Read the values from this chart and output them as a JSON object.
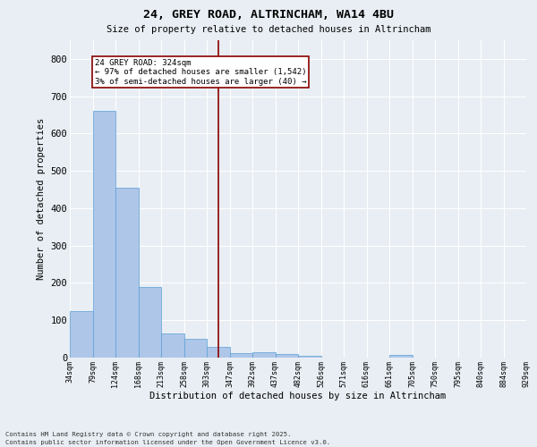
{
  "title1": "24, GREY ROAD, ALTRINCHAM, WA14 4BU",
  "title2": "Size of property relative to detached houses in Altrincham",
  "xlabel": "Distribution of detached houses by size in Altrincham",
  "ylabel": "Number of detached properties",
  "bar_values": [
    125,
    662,
    455,
    188,
    65,
    50,
    28,
    12,
    14,
    10,
    5,
    0,
    0,
    0,
    8,
    0,
    0,
    0,
    0,
    0
  ],
  "categories": [
    "34sqm",
    "79sqm",
    "124sqm",
    "168sqm",
    "213sqm",
    "258sqm",
    "303sqm",
    "347sqm",
    "392sqm",
    "437sqm",
    "482sqm",
    "526sqm",
    "571sqm",
    "616sqm",
    "661sqm",
    "705sqm",
    "750sqm",
    "795sqm",
    "840sqm",
    "884sqm",
    "929sqm"
  ],
  "bar_color": "#aec6e8",
  "bar_edgecolor": "#5a9fd4",
  "background_color": "#e8eef4",
  "grid_color": "#ffffff",
  "vline_x": 6.5,
  "vline_color": "#8b0000",
  "annotation_title": "24 GREY ROAD: 324sqm",
  "annotation_line1": "← 97% of detached houses are smaller (1,542)",
  "annotation_line2": "3% of semi-detached houses are larger (40) →",
  "annotation_box_color": "#ffffff",
  "annotation_box_edgecolor": "#8b0000",
  "ylim": [
    0,
    850
  ],
  "yticks": [
    0,
    100,
    200,
    300,
    400,
    500,
    600,
    700,
    800
  ],
  "footnote1": "Contains HM Land Registry data © Crown copyright and database right 2025.",
  "footnote2": "Contains public sector information licensed under the Open Government Licence v3.0."
}
